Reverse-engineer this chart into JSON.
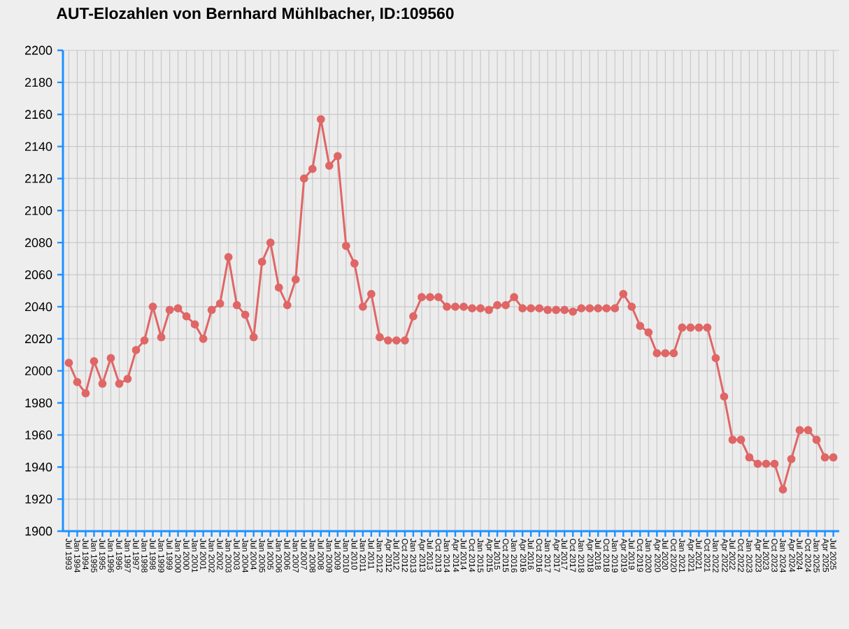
{
  "chart_data": {
    "type": "line",
    "title": "AUT-Elozahlen von Bernhard Mühlbacher, ID:109560",
    "categories": [
      "Jul 1993",
      "Jan 1994",
      "Jul 1994",
      "Jan 1995",
      "Jul 1995",
      "Jan 1996",
      "Jul 1996",
      "Jan 1997",
      "Jul 1997",
      "Jan 1998",
      "Jul 1998",
      "Jan 1999",
      "Jul 1999",
      "Jan 2000",
      "Jul 2000",
      "Jan 2001",
      "Jul 2001",
      "Jan 2002",
      "Jul 2002",
      "Jan 2003",
      "Jul 2003",
      "Jan 2004",
      "Jul 2004",
      "Jan 2005",
      "Jul 2005",
      "Jan 2006",
      "Jul 2006",
      "Jan 2007",
      "Jul 2007",
      "Jan 2008",
      "Jul 2008",
      "Jan 2009",
      "Jul 2009",
      "Jan 2010",
      "Jul 2010",
      "Jan 2011",
      "Jul 2011",
      "Jan 2012",
      "Apr 2012",
      "Jul 2012",
      "Oct 2012",
      "Jan 2013",
      "Apr 2013",
      "Jul 2013",
      "Oct 2013",
      "Jan 2014",
      "Apr 2014",
      "Jul 2014",
      "Oct 2014",
      "Jan 2015",
      "Apr 2015",
      "Jul 2015",
      "Oct 2015",
      "Jan 2016",
      "Apr 2016",
      "Jul 2016",
      "Oct 2016",
      "Jan 2017",
      "Apr 2017",
      "Jul 2017",
      "Oct 2017",
      "Jan 2018",
      "Apr 2018",
      "Jul 2018",
      "Oct 2018",
      "Jan 2019",
      "Apr 2019",
      "Jul 2019",
      "Oct 2019",
      "Jan 2020",
      "Apr 2020",
      "Jul 2020",
      "Oct 2020",
      "Jan 2021",
      "Apr 2021",
      "Jul 2021",
      "Oct 2021",
      "Jan 2022",
      "Apr 2022",
      "Jul 2022",
      "Oct 2022",
      "Jan 2023",
      "Apr 2023",
      "Jul 2023",
      "Oct 2023",
      "Jan 2024",
      "Apr 2024",
      "Jul 2024",
      "Oct 2024",
      "Jan 2025",
      "Apr 2025",
      "Jul 2025"
    ],
    "series": [
      {
        "color": "#e06666",
        "values": [
          2005,
          1993,
          1986,
          2006,
          1992,
          2008,
          1992,
          1995,
          2013,
          2019,
          2040,
          2021,
          2038,
          2039,
          2034,
          2029,
          2020,
          2038,
          2042,
          2071,
          2041,
          2035,
          2021,
          2068,
          2080,
          2052,
          2041,
          2057,
          2120,
          2126,
          2157,
          2128,
          2134,
          2078,
          2067,
          2040,
          2048,
          2021,
          2019,
          2019,
          2019,
          2034,
          2046,
          2046,
          2046,
          2040,
          2040,
          2040,
          2039,
          2039,
          2038,
          2041,
          2041,
          2046,
          2039,
          2039,
          2039,
          2038,
          2038,
          2038,
          2037,
          2039,
          2039,
          2039,
          2039,
          2039,
          2048,
          2040,
          2028,
          2024,
          2011,
          2011,
          2011,
          2027,
          2027,
          2027,
          2027,
          2008,
          1984,
          1957,
          1957,
          1946,
          1942,
          1942,
          1942,
          1926,
          1945,
          1963,
          1963,
          1957,
          1946,
          1946
        ]
      }
    ],
    "ylim": [
      1900,
      2200
    ],
    "yticks": [
      1900,
      1920,
      1940,
      1960,
      1980,
      2000,
      2020,
      2040,
      2060,
      2080,
      2100,
      2120,
      2140,
      2160,
      2180,
      2200
    ],
    "grid": true,
    "marker": "circle"
  }
}
